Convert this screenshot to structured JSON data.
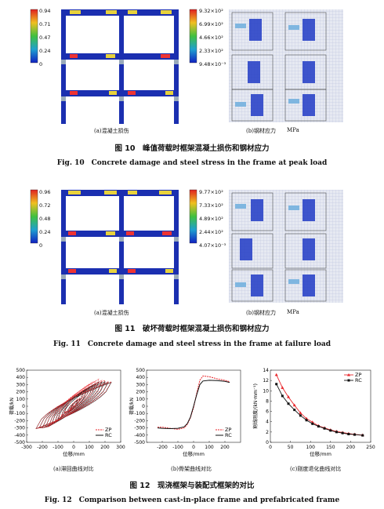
{
  "fig10": {
    "legend_left": [
      "0.94",
      "0.71",
      "0.47",
      "0.24",
      "0"
    ],
    "legend_right": [
      "9.32×10²",
      "6.99×10²",
      "4.66×10²",
      "2.33×10²",
      "9.48×10⁻³"
    ],
    "sub_a": "(a)混凝土损伤",
    "sub_b": "(b)钢材应力",
    "unit": "MPa",
    "caption_cn": "图 10　峰值荷载时框架混凝土损伤和钢材应力",
    "caption_en": "Fig. 10　Concrete damage and steel stress in the frame at peak load"
  },
  "fig11": {
    "legend_left": [
      "0.96",
      "0.72",
      "0.48",
      "0.24",
      "0"
    ],
    "legend_right": [
      "9.77×10²",
      "7.33×10²",
      "4.89×10²",
      "2.44×10²",
      "4.07×10⁻³"
    ],
    "sub_a": "(a)混凝土损伤",
    "sub_b": "(b)钢材应力",
    "unit": "MPa",
    "caption_cn": "图 11　破坏荷载时框架混凝土损伤和钢材应力",
    "caption_en": "Fig. 11　Concrete damage and steel stress in the frame at failure load"
  },
  "fig12": {
    "caption_cn": "图 12　现浇框架与装配式框架的对比",
    "caption_en": "Fig. 12　Comparison between cast-in-place frame and prefabricated frame",
    "sub_a": "(a)滞回曲线对比",
    "sub_b": "(b)骨架曲线对比",
    "sub_c": "(c)刚度退化曲线对比"
  },
  "colors": {
    "zp": "#e8262b",
    "rc": "#111111",
    "frame": "#1b2fb0"
  },
  "chart_data": [
    {
      "type": "line",
      "xlabel": "位移/mm",
      "ylabel": "荷载/kN",
      "xlim": [
        -300,
        300
      ],
      "ylim": [
        -500,
        500
      ],
      "xticks": [
        -300,
        -200,
        -100,
        0,
        100,
        200,
        300
      ],
      "yticks": [
        -500,
        -400,
        -300,
        -200,
        -100,
        0,
        100,
        200,
        300,
        400,
        500
      ],
      "legend": "bottom-right",
      "series": [
        {
          "name": "ZP",
          "color": "#e8262b",
          "style": "dashed",
          "x": [
            -230,
            -200,
            -150,
            -100,
            -60,
            -30,
            0,
            30,
            60,
            100,
            150,
            200,
            230
          ],
          "y": [
            -310,
            -300,
            -290,
            -270,
            -230,
            -160,
            0,
            250,
            400,
            420,
            390,
            360,
            340
          ],
          "amplitudes": [
            10,
            25,
            40,
            60,
            80,
            100,
            120,
            140,
            160,
            180,
            200,
            220,
            240
          ]
        },
        {
          "name": "RC",
          "color": "#111111",
          "style": "solid",
          "x": [
            -230,
            -200,
            -150,
            -100,
            -60,
            -30,
            0,
            30,
            60,
            100,
            150,
            200,
            230
          ],
          "y": [
            -310,
            -300,
            -290,
            -280,
            -250,
            -180,
            0,
            220,
            330,
            350,
            350,
            340,
            330
          ],
          "amplitudes": [
            10,
            25,
            40,
            60,
            80,
            100,
            120,
            140,
            160,
            180,
            200,
            220,
            240
          ]
        }
      ]
    },
    {
      "type": "line",
      "xlabel": "位移/mm",
      "ylabel": "荷载/kN",
      "xlim": [
        -300,
        300
      ],
      "ylim": [
        -500,
        500
      ],
      "xticks": [
        -200,
        -100,
        0,
        100,
        200
      ],
      "yticks": [
        -500,
        -400,
        -300,
        -200,
        -100,
        0,
        100,
        200,
        300,
        400,
        500
      ],
      "legend": "bottom-right",
      "series": [
        {
          "name": "ZP",
          "color": "#e8262b",
          "style": "dashed",
          "x": [
            -230,
            -200,
            -150,
            -100,
            -60,
            -40,
            -20,
            0,
            20,
            40,
            60,
            100,
            150,
            200,
            230
          ],
          "y": [
            -290,
            -290,
            -305,
            -320,
            -300,
            -250,
            -160,
            -20,
            180,
            360,
            420,
            410,
            380,
            360,
            340
          ]
        },
        {
          "name": "RC",
          "color": "#111111",
          "style": "solid",
          "x": [
            -230,
            -200,
            -150,
            -100,
            -60,
            -40,
            -20,
            0,
            20,
            40,
            60,
            100,
            150,
            200,
            230
          ],
          "y": [
            -300,
            -305,
            -310,
            -305,
            -285,
            -240,
            -150,
            0,
            160,
            300,
            350,
            360,
            355,
            345,
            330
          ]
        }
      ]
    },
    {
      "type": "line",
      "xlabel": "位移/mm",
      "ylabel": "割线刚度/(kN·mm⁻¹)",
      "xlim": [
        0,
        250
      ],
      "ylim": [
        0,
        14
      ],
      "xticks": [
        0,
        50,
        100,
        150,
        200,
        250
      ],
      "yticks": [
        0,
        2,
        4,
        6,
        8,
        10,
        12,
        14
      ],
      "legend": "top-right",
      "series": [
        {
          "name": "ZP",
          "color": "#e8262b",
          "marker": "triangle",
          "x": [
            15,
            30,
            45,
            60,
            75,
            90,
            105,
            120,
            135,
            150,
            165,
            180,
            195,
            210,
            230
          ],
          "y": [
            13.1,
            10.6,
            8.8,
            7.2,
            5.7,
            4.6,
            3.9,
            3.2,
            2.8,
            2.4,
            2.1,
            1.9,
            1.7,
            1.55,
            1.4
          ]
        },
        {
          "name": "RC",
          "color": "#111111",
          "marker": "square",
          "x": [
            15,
            30,
            45,
            60,
            75,
            90,
            105,
            120,
            135,
            150,
            165,
            180,
            195,
            210,
            230
          ],
          "y": [
            11.3,
            9.0,
            7.5,
            6.3,
            5.2,
            4.3,
            3.6,
            3.1,
            2.7,
            2.3,
            2.0,
            1.8,
            1.6,
            1.5,
            1.35
          ]
        }
      ]
    }
  ]
}
